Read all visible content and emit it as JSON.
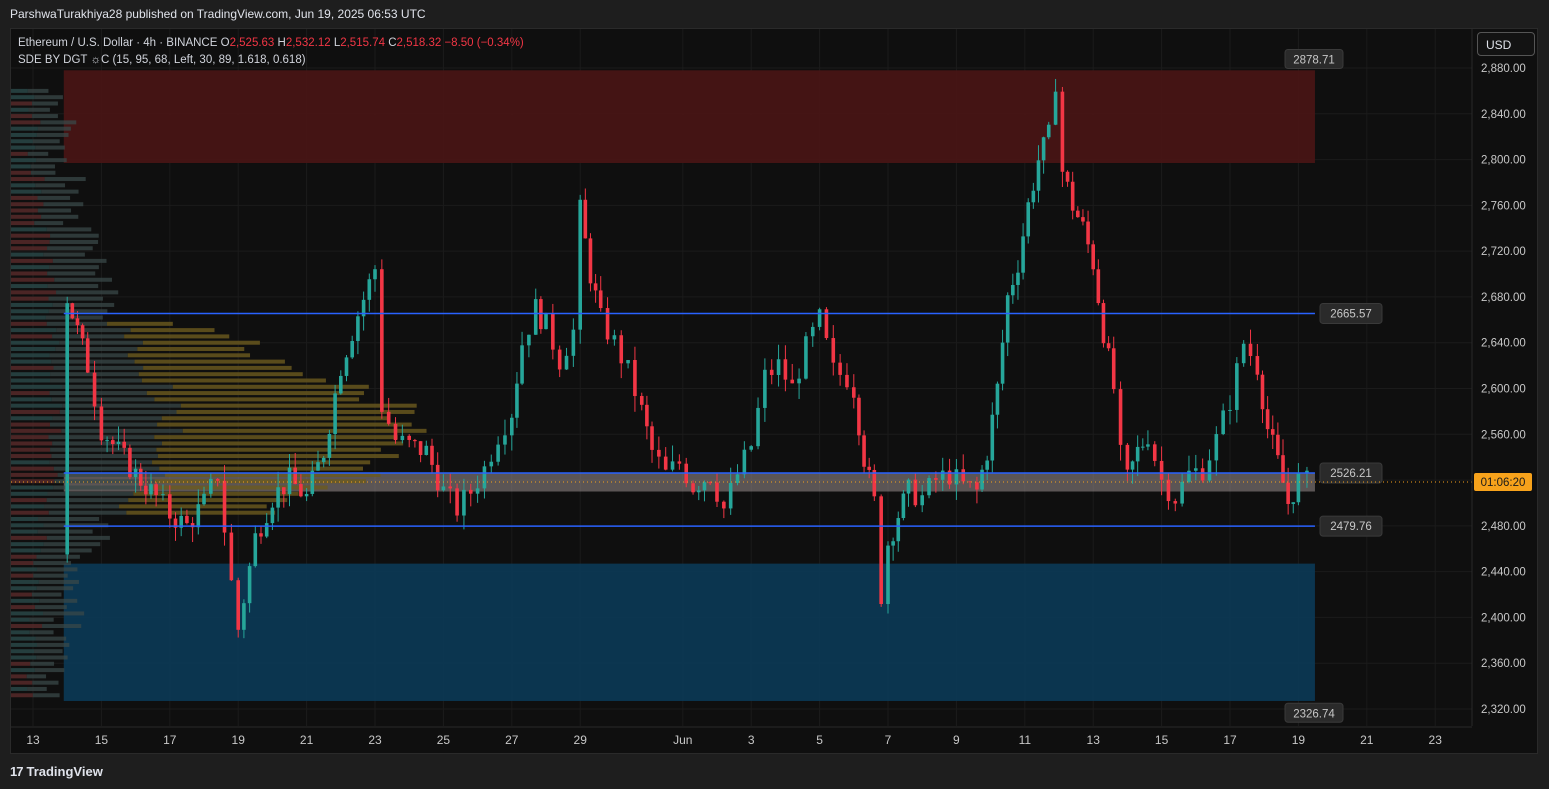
{
  "header": {
    "publisher": "ParshwaTurakhiya28 published on TradingView.com, Jun 19, 2025 06:53 UTC"
  },
  "legend": {
    "symbol": "Ethereum / U.S. Dollar · 4h · BINANCE",
    "o_key": "O",
    "o_val": "2,525.63",
    "h_key": "H",
    "h_val": "2,532.12",
    "l_key": "L",
    "l_val": "2,515.74",
    "c_key": "C",
    "c_val": "2,518.32",
    "change": "−8.50 (−0.34%)",
    "indicator": "SDE BY DGT ☼C (15, 95, 68, Left, 30, 89, 1.618, 0.618)"
  },
  "toolbar": {
    "currency_label": "USD"
  },
  "footer": {
    "brand": "TradingView",
    "brand_mark": "17"
  },
  "colors": {
    "up": "#26a69a",
    "down": "#f23645",
    "level_line": "#2962ff",
    "supply_zone": "#4a1515",
    "demand_zone": "#0b3a57",
    "poc_band": "#9a8f8f",
    "current_price": "#f7a21b"
  },
  "chart_data": {
    "type": "candlestick",
    "title": "Ethereum / U.S. Dollar · 4h · BINANCE",
    "ylim": [
      2310,
      2900
    ],
    "y_ticks": [
      "2,880.00",
      "2,840.00",
      "2,800.00",
      "2,760.00",
      "2,720.00",
      "2,680.00",
      "2,640.00",
      "2,600.00",
      "2,560.00",
      "2,520.00",
      "2,480.00",
      "2,440.00",
      "2,400.00",
      "2,360.00",
      "2,320.00"
    ],
    "y_tick_values": [
      2880,
      2840,
      2800,
      2760,
      2720,
      2680,
      2640,
      2600,
      2560,
      2520,
      2480,
      2440,
      2400,
      2360,
      2320
    ],
    "x_ticks": [
      {
        "label": "13",
        "day": 13
      },
      {
        "label": "15",
        "day": 15
      },
      {
        "label": "17",
        "day": 17
      },
      {
        "label": "19",
        "day": 19
      },
      {
        "label": "21",
        "day": 21
      },
      {
        "label": "23",
        "day": 23
      },
      {
        "label": "25",
        "day": 25
      },
      {
        "label": "27",
        "day": 27
      },
      {
        "label": "29",
        "day": 29
      },
      {
        "label": "Jun",
        "day": 32
      },
      {
        "label": "3",
        "day": 34
      },
      {
        "label": "5",
        "day": 36
      },
      {
        "label": "7",
        "day": 38
      },
      {
        "label": "9",
        "day": 40
      },
      {
        "label": "11",
        "day": 42
      },
      {
        "label": "13",
        "day": 44
      },
      {
        "label": "15",
        "day": 46
      },
      {
        "label": "17",
        "day": 48
      },
      {
        "label": "19",
        "day": 50
      },
      {
        "label": "21",
        "day": 52
      },
      {
        "label": "23",
        "day": 54
      }
    ],
    "x_start_day": 12.4,
    "last_day": 50.25,
    "levels": [
      {
        "name": "resistance",
        "value": 2665.57,
        "label": "2665.57"
      },
      {
        "name": "pivot",
        "value": 2526.21,
        "label": "2526.21"
      },
      {
        "name": "support",
        "value": 2479.76,
        "label": "2479.76"
      }
    ],
    "range_high": {
      "value": 2878.71,
      "label": "2878.71"
    },
    "range_low": {
      "value": 2326.74,
      "label": "2326.74"
    },
    "current_price": {
      "value": 2518.32,
      "countdown": "01:06:20"
    },
    "zones": [
      {
        "name": "supply",
        "top": 2878,
        "bottom": 2797
      },
      {
        "name": "demand",
        "top": 2447,
        "bottom": 2327
      },
      {
        "name": "poc-band",
        "top": 2526,
        "bottom": 2510
      }
    ],
    "close_path": [
      [
        13.8,
        2455
      ],
      [
        14.0,
        2680
      ],
      [
        14.6,
        2620
      ],
      [
        15.0,
        2565
      ],
      [
        15.5,
        2545
      ],
      [
        16.0,
        2525
      ],
      [
        16.6,
        2505
      ],
      [
        17.0,
        2490
      ],
      [
        17.5,
        2480
      ],
      [
        18.0,
        2500
      ],
      [
        18.4,
        2525
      ],
      [
        18.8,
        2430
      ],
      [
        19.0,
        2390
      ],
      [
        19.5,
        2470
      ],
      [
        20.0,
        2505
      ],
      [
        20.5,
        2520
      ],
      [
        21.0,
        2505
      ],
      [
        21.5,
        2545
      ],
      [
        22.0,
        2620
      ],
      [
        22.5,
        2665
      ],
      [
        23.0,
        2705
      ],
      [
        23.2,
        2585
      ],
      [
        23.6,
        2555
      ],
      [
        24.0,
        2550
      ],
      [
        24.5,
        2545
      ],
      [
        25.0,
        2510
      ],
      [
        25.4,
        2495
      ],
      [
        25.8,
        2510
      ],
      [
        26.2,
        2530
      ],
      [
        26.6,
        2560
      ],
      [
        27.0,
        2580
      ],
      [
        27.3,
        2640
      ],
      [
        27.7,
        2670
      ],
      [
        28.0,
        2655
      ],
      [
        28.4,
        2625
      ],
      [
        28.8,
        2650
      ],
      [
        29.0,
        2755
      ],
      [
        29.3,
        2700
      ],
      [
        29.6,
        2660
      ],
      [
        30.0,
        2640
      ],
      [
        30.4,
        2615
      ],
      [
        30.8,
        2580
      ],
      [
        31.1,
        2545
      ],
      [
        31.5,
        2525
      ],
      [
        31.9,
        2535
      ],
      [
        32.3,
        2515
      ],
      [
        32.8,
        2525
      ],
      [
        33.2,
        2495
      ],
      [
        33.6,
        2525
      ],
      [
        34.0,
        2550
      ],
      [
        34.4,
        2610
      ],
      [
        34.8,
        2620
      ],
      [
        35.2,
        2600
      ],
      [
        35.6,
        2635
      ],
      [
        36.0,
        2660
      ],
      [
        36.4,
        2615
      ],
      [
        36.8,
        2610
      ],
      [
        37.0,
        2600
      ],
      [
        37.3,
        2540
      ],
      [
        37.6,
        2500
      ],
      [
        37.8,
        2420
      ],
      [
        38.0,
        2465
      ],
      [
        38.3,
        2490
      ],
      [
        38.6,
        2510
      ],
      [
        39.0,
        2505
      ],
      [
        39.4,
        2520
      ],
      [
        39.8,
        2525
      ],
      [
        40.2,
        2515
      ],
      [
        40.6,
        2510
      ],
      [
        40.9,
        2545
      ],
      [
        41.2,
        2600
      ],
      [
        41.5,
        2680
      ],
      [
        41.8,
        2710
      ],
      [
        42.1,
        2760
      ],
      [
        42.4,
        2800
      ],
      [
        42.7,
        2820
      ],
      [
        42.9,
        2870
      ],
      [
        43.1,
        2790
      ],
      [
        43.4,
        2760
      ],
      [
        43.7,
        2740
      ],
      [
        44.0,
        2710
      ],
      [
        44.3,
        2650
      ],
      [
        44.6,
        2600
      ],
      [
        44.8,
        2540
      ],
      [
        45.0,
        2520
      ],
      [
        45.3,
        2545
      ],
      [
        45.6,
        2560
      ],
      [
        46.0,
        2520
      ],
      [
        46.4,
        2505
      ],
      [
        46.8,
        2525
      ],
      [
        47.2,
        2530
      ],
      [
        47.6,
        2555
      ],
      [
        48.0,
        2590
      ],
      [
        48.4,
        2640
      ],
      [
        48.8,
        2620
      ],
      [
        49.1,
        2565
      ],
      [
        49.4,
        2535
      ],
      [
        49.7,
        2500
      ],
      [
        50.0,
        2520
      ],
      [
        50.25,
        2518
      ]
    ]
  }
}
